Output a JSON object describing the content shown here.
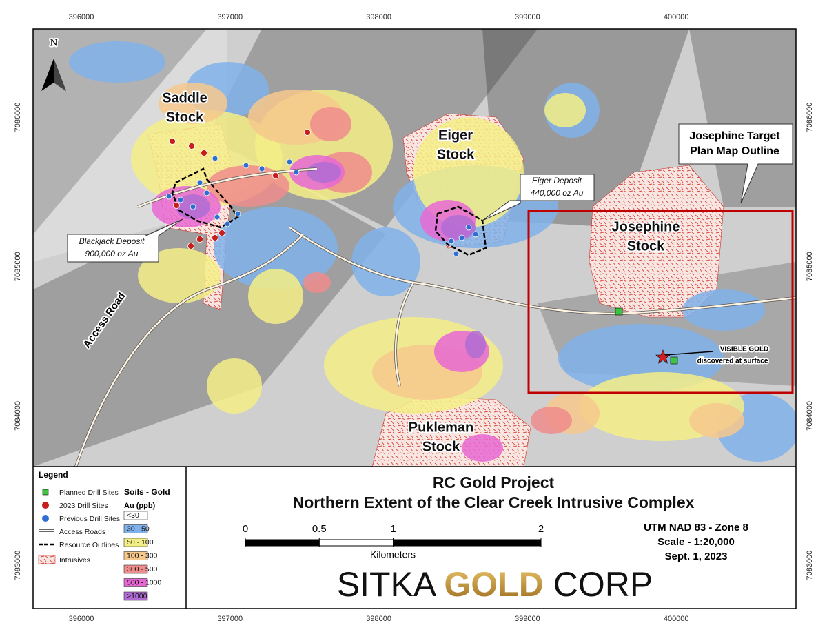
{
  "grid": {
    "eastings": [
      396000,
      397000,
      398000,
      399000,
      400000
    ],
    "northings": [
      7086000,
      7085000,
      7084000,
      7083000
    ]
  },
  "map_labels": {
    "north": "N",
    "saddle_stock": [
      "Saddle",
      "Stock"
    ],
    "eiger_stock": [
      "Eiger",
      "Stock"
    ],
    "josephine_stock": [
      "Josephine",
      "Stock"
    ],
    "pukleman_stock": [
      "Pukleman",
      "Stock"
    ],
    "josephine_target": [
      "Josephine Target",
      "Plan Map Outline"
    ],
    "eiger_deposit": [
      "Eiger Deposit",
      "440,000 oz Au"
    ],
    "blackjack_deposit": [
      "Blackjack Deposit",
      "900,000 oz Au"
    ],
    "access_road": "Access Road",
    "visible_gold": [
      "VISIBLE GOLD",
      "discovered at surface"
    ]
  },
  "legend": {
    "title": "Legend",
    "items": [
      "Planned Drill Sites",
      "2023 Drill Sites",
      "Previous Drill Sites",
      "Access Roads",
      "Resource Outlines",
      "Intrusives"
    ],
    "soils_title": "Soils - Gold",
    "soils_unit": "Au (ppb)",
    "soil_classes": [
      "<30",
      "30 - 50",
      "50 - 100",
      "100 - 300",
      "300 - 500",
      "500 - 1000",
      ">1000"
    ]
  },
  "title": {
    "line1": "RC Gold Project",
    "line2": "Northern Extent of the Clear Creek Intrusive Complex"
  },
  "scale_bar": {
    "ticks": [
      0,
      0.5,
      1,
      2
    ],
    "unit": "Kilometers"
  },
  "info": [
    "UTM NAD 83 - Zone 8",
    "Scale - 1:20,000",
    "Sept. 1, 2023"
  ],
  "logo": {
    "left": "SITKA",
    "middle": "GOLD",
    "right": "CORP"
  }
}
